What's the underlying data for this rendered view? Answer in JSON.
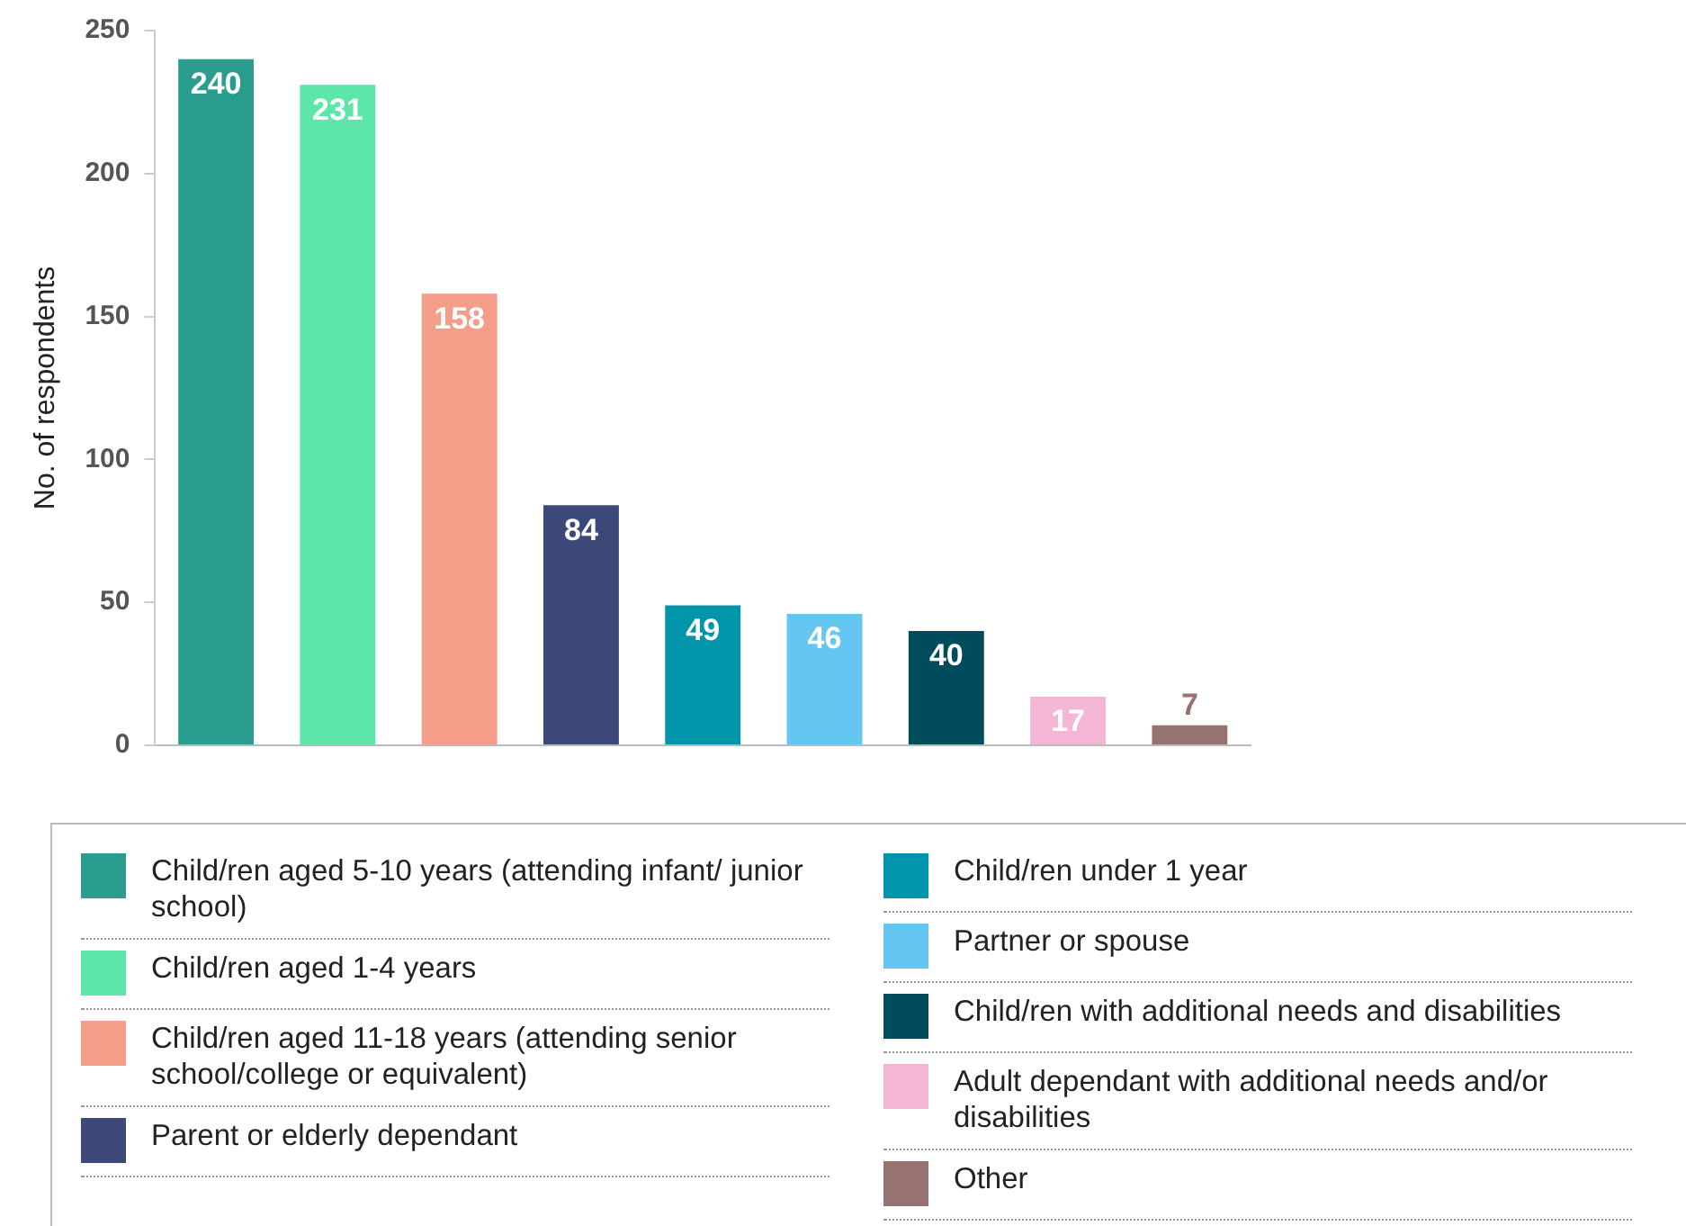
{
  "chart_data": {
    "type": "bar",
    "ylabel": "No. of respondents",
    "categories": [
      null
    ],
    "series": [
      {
        "name": "Child/ren aged 5-10 years (attending infant/ junior school)",
        "color": "#2a9d8f",
        "values": [
          240
        ]
      },
      {
        "name": "Child/ren aged 1-4 years",
        "color": "#5ce6a8",
        "values": [
          231
        ]
      },
      {
        "name": "Child/ren aged 11-18 years (attending senior school/college or equivalent)",
        "color": "#f49d88",
        "values": [
          158
        ]
      },
      {
        "name": "Parent or elderly dependant",
        "color": "#3b4878",
        "values": [
          84
        ]
      },
      {
        "name": "Child/ren under 1 year",
        "color": "#0095ab",
        "values": [
          49
        ]
      },
      {
        "name": "Partner or spouse",
        "color": "#65c6f2",
        "values": [
          46
        ]
      },
      {
        "name": "Child/ren with additional needs and disabilities",
        "color": "#004c5c",
        "values": [
          40
        ]
      },
      {
        "name": "Adult dependant with additional needs and/or disabilities",
        "color": "#f5b5d4",
        "values": [
          17
        ]
      },
      {
        "name": "Other",
        "color": "#967370",
        "values": [
          7
        ]
      }
    ],
    "ylim": [
      0,
      250
    ],
    "yticks": [
      0,
      50,
      100,
      150,
      200,
      250
    ],
    "grid": false,
    "legend": "bottom",
    "tick_labels": "y",
    "data_labels": true
  }
}
